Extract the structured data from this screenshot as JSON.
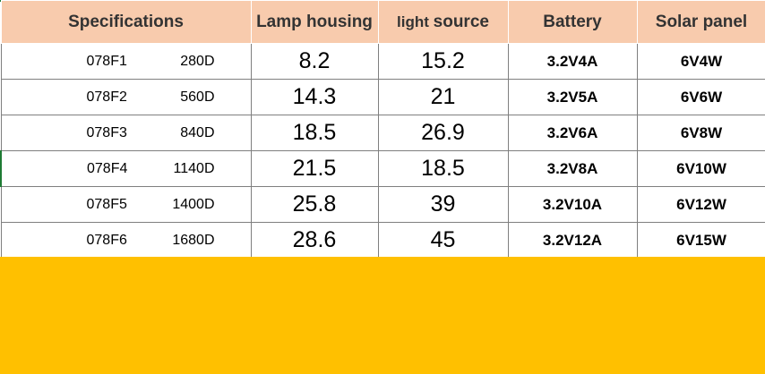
{
  "table": {
    "headers": [
      "Specifications",
      "Lamp housing",
      "light",
      "source",
      "Battery",
      "Solar panel"
    ],
    "rows": [
      {
        "model": "078F1",
        "power": "280D",
        "lamp_housing": "8.2",
        "light_source": "15.2",
        "battery": "3.2V4A",
        "solar_panel": "6V4W"
      },
      {
        "model": "078F2",
        "power": "560D",
        "lamp_housing": "14.3",
        "light_source": "21",
        "battery": "3.2V5A",
        "solar_panel": "6V6W"
      },
      {
        "model": "078F3",
        "power": "840D",
        "lamp_housing": "18.5",
        "light_source": "26.9",
        "battery": "3.2V6A",
        "solar_panel": "6V8W"
      },
      {
        "model": "078F4",
        "power": "1140D",
        "lamp_housing": "21.5",
        "light_source": "18.5",
        "battery": "3.2V8A",
        "solar_panel": "6V10W"
      },
      {
        "model": "078F5",
        "power": "1400D",
        "lamp_housing": "25.8",
        "light_source": "39",
        "battery": "3.2V10A",
        "solar_panel": "6V12W"
      },
      {
        "model": "078F6",
        "power": "1680D",
        "lamp_housing": "28.6",
        "light_source": "45",
        "battery": "3.2V12A",
        "solar_panel": "6V15W"
      }
    ]
  },
  "colors": {
    "header_bg": "#f8cbad",
    "footer_band": "#ffc000",
    "accent_green": "#1e7b34"
  }
}
